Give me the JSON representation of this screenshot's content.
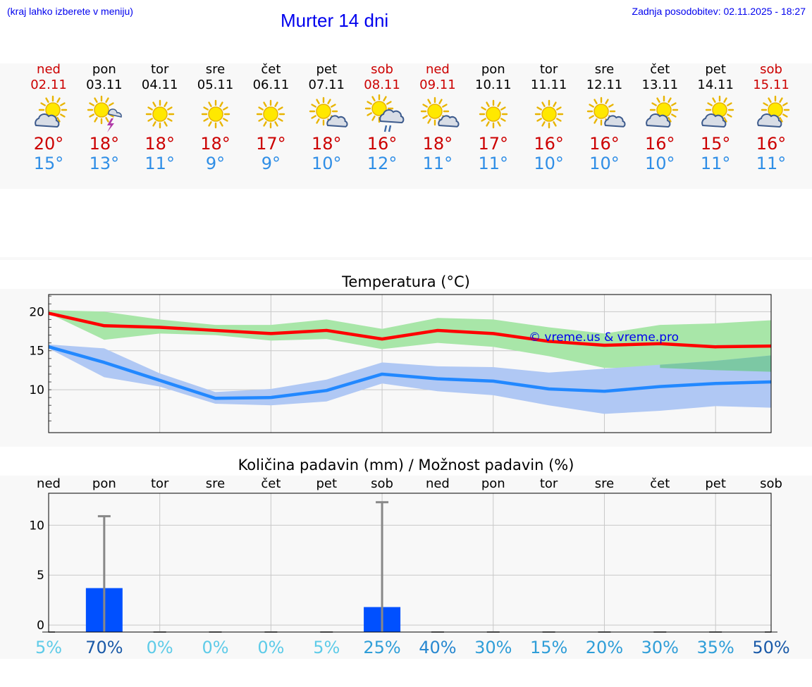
{
  "header": {
    "hint": "(kraj lahko izberete v meniju)",
    "title": "Murter 14 dni",
    "updated": "Zadnja posodobitev: 02.11.2025 - 18:27"
  },
  "days": [
    {
      "name": "ned",
      "date": "02.11",
      "weekend": true,
      "icon": "sun-cloud-icon",
      "max": "20°",
      "min": "15°"
    },
    {
      "name": "pon",
      "date": "03.11",
      "weekend": false,
      "icon": "sun-storm-icon",
      "max": "18°",
      "min": "13°"
    },
    {
      "name": "tor",
      "date": "04.11",
      "weekend": false,
      "icon": "sun-icon",
      "max": "18°",
      "min": "11°"
    },
    {
      "name": "sre",
      "date": "05.11",
      "weekend": false,
      "icon": "sun-icon",
      "max": "18°",
      "min": "9°"
    },
    {
      "name": "čet",
      "date": "06.11",
      "weekend": false,
      "icon": "sun-icon",
      "max": "17°",
      "min": "9°"
    },
    {
      "name": "pet",
      "date": "07.11",
      "weekend": false,
      "icon": "sun-small-cloud-icon",
      "max": "18°",
      "min": "10°"
    },
    {
      "name": "sob",
      "date": "08.11",
      "weekend": true,
      "icon": "sun-cloud-rain-icon",
      "max": "16°",
      "min": "12°"
    },
    {
      "name": "ned",
      "date": "09.11",
      "weekend": true,
      "icon": "sun-small-cloud-icon",
      "max": "18°",
      "min": "11°"
    },
    {
      "name": "pon",
      "date": "10.11",
      "weekend": false,
      "icon": "sun-icon",
      "max": "17°",
      "min": "11°"
    },
    {
      "name": "tor",
      "date": "11.11",
      "weekend": false,
      "icon": "sun-icon",
      "max": "16°",
      "min": "10°"
    },
    {
      "name": "sre",
      "date": "12.11",
      "weekend": false,
      "icon": "sun-small-cloud-icon",
      "max": "16°",
      "min": "10°"
    },
    {
      "name": "čet",
      "date": "13.11",
      "weekend": false,
      "icon": "sun-cloud-icon",
      "max": "16°",
      "min": "10°"
    },
    {
      "name": "pet",
      "date": "14.11",
      "weekend": false,
      "icon": "sun-cloud-icon",
      "max": "15°",
      "min": "11°"
    },
    {
      "name": "sob",
      "date": "15.11",
      "weekend": true,
      "icon": "sun-cloud-icon",
      "max": "16°",
      "min": "11°"
    }
  ],
  "colors": {
    "max_line": "#ff0000",
    "max_band": "#a8e6a8",
    "min_line": "#2288ff",
    "min_band": "#b0c8f4",
    "overlap_band": "#7cc8a4",
    "precip_bar": "#0050ff",
    "whisker": "#888888",
    "weekend": "#cc0000",
    "min_text": "#2f8ee6"
  },
  "chart_data": [
    {
      "type": "line",
      "title": "Temperatura (°C)",
      "watermark": "© vreme.us & vreme.pro",
      "x": [
        0,
        1,
        2,
        3,
        4,
        5,
        6,
        7,
        8,
        9,
        10,
        11,
        12,
        13
      ],
      "ylim": [
        4.5,
        22.2
      ],
      "yticks": [
        10,
        15,
        20
      ],
      "series": [
        {
          "name": "max",
          "values": [
            19.8,
            18.2,
            18.0,
            17.6,
            17.2,
            17.6,
            16.5,
            17.6,
            17.2,
            16.2,
            15.7,
            15.9,
            15.5,
            15.6
          ],
          "band_low": [
            19.8,
            16.4,
            17.2,
            17.0,
            16.3,
            16.5,
            15.2,
            16.0,
            15.5,
            14.3,
            12.8,
            12.8,
            12.5,
            12.3
          ],
          "band_high": [
            20.2,
            20.0,
            19.0,
            18.3,
            18.3,
            19.0,
            17.8,
            19.2,
            19.0,
            18.0,
            17.2,
            18.3,
            18.5,
            18.9
          ]
        },
        {
          "name": "min",
          "values": [
            15.5,
            13.5,
            11.2,
            8.9,
            9.0,
            9.9,
            12.0,
            11.4,
            11.1,
            10.1,
            9.8,
            10.4,
            10.8,
            11.0
          ],
          "band_low": [
            15.3,
            11.6,
            10.4,
            8.2,
            8.0,
            8.5,
            10.8,
            9.8,
            9.3,
            8.0,
            6.9,
            7.3,
            7.9,
            7.7
          ],
          "band_high": [
            15.8,
            15.3,
            12.1,
            9.7,
            10.1,
            11.3,
            13.5,
            13.0,
            12.9,
            12.2,
            12.7,
            13.2,
            13.7,
            14.4
          ]
        }
      ]
    },
    {
      "type": "bar",
      "title": "Količina padavin (mm) / Možnost padavin (%)",
      "categories": [
        "ned",
        "pon",
        "tor",
        "sre",
        "čet",
        "pet",
        "sob",
        "ned",
        "pon",
        "tor",
        "sre",
        "čet",
        "pet",
        "sob"
      ],
      "ylim": [
        -0.7,
        13.2
      ],
      "yticks": [
        0,
        5,
        10
      ],
      "values": [
        0,
        3.7,
        0,
        0,
        0,
        0,
        1.8,
        0,
        0,
        0,
        0,
        0,
        0,
        0
      ],
      "whisker": [
        0,
        10.9,
        0,
        0,
        0,
        0,
        12.3,
        0,
        0,
        0,
        0,
        0,
        0,
        0
      ],
      "probability": [
        "5%",
        "70%",
        "0%",
        "0%",
        "0%",
        "5%",
        "25%",
        "40%",
        "30%",
        "15%",
        "20%",
        "30%",
        "35%",
        "50%"
      ],
      "probability_values": [
        5,
        70,
        0,
        0,
        0,
        5,
        25,
        40,
        30,
        15,
        20,
        30,
        35,
        50
      ]
    }
  ]
}
